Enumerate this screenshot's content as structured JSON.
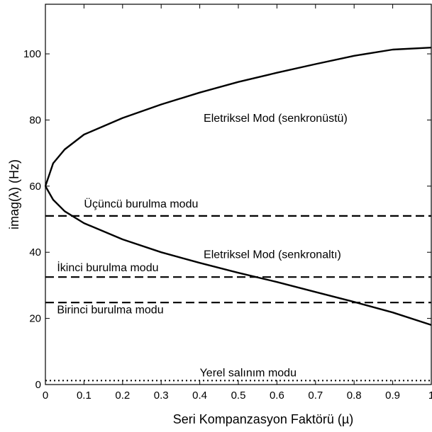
{
  "chart_data": {
    "type": "line",
    "title": "",
    "xlabel": "Seri Kompanzasyon Faktörü (µ)",
    "ylabel": "imag(λ) (Hz)",
    "xlim": [
      0,
      1
    ],
    "ylim": [
      0,
      115
    ],
    "x_ticks": [
      0,
      0.1,
      0.2,
      0.3,
      0.4,
      0.5,
      0.6,
      0.7,
      0.8,
      0.9,
      1
    ],
    "x_tick_labels": [
      "0",
      "0.1",
      "0.2",
      "0.3",
      "0.4",
      "0.5",
      "0.6",
      "0.7",
      "0.8",
      "0.9",
      "1"
    ],
    "y_ticks": [
      0,
      20,
      40,
      60,
      80,
      100
    ],
    "y_tick_labels": [
      "0",
      "20",
      "40",
      "60",
      "80",
      "100"
    ],
    "grid": false,
    "colors": {
      "line": "#000000",
      "background": "#ffffff"
    },
    "series": [
      {
        "style": "solid",
        "x": [
          0,
          0.02,
          0.05,
          0.1,
          0.2,
          0.3,
          0.4,
          0.5,
          0.6,
          0.7,
          0.8,
          0.9,
          1.0
        ],
        "y": [
          60,
          66.9,
          71.1,
          75.6,
          80.6,
          84.7,
          88.3,
          91.5,
          94.3,
          96.9,
          99.4,
          101.3,
          101.9
        ]
      },
      {
        "style": "solid",
        "x": [
          0,
          0.02,
          0.05,
          0.1,
          0.2,
          0.3,
          0.4,
          0.5,
          0.6,
          0.7,
          0.8,
          0.9,
          1.0
        ],
        "y": [
          60,
          55.9,
          52.4,
          48.8,
          43.9,
          40.0,
          36.8,
          33.8,
          31.0,
          28.0,
          25.0,
          21.8,
          18.0
        ]
      },
      {
        "style": "dashed",
        "x": [
          0,
          1
        ],
        "y": [
          51,
          51
        ]
      },
      {
        "style": "dashed",
        "x": [
          0,
          1
        ],
        "y": [
          32.5,
          32.5
        ]
      },
      {
        "style": "dashed",
        "x": [
          0,
          1
        ],
        "y": [
          24.8,
          24.8
        ]
      },
      {
        "style": "dotted",
        "x": [
          0,
          1
        ],
        "y": [
          1.2,
          1.2
        ]
      }
    ],
    "annotations": [
      {
        "text": "Eletriksel Mod (senkronüstü)",
        "x": 0.41,
        "y": 79.5
      },
      {
        "text": "Üçüncü burulma modu",
        "x": 0.1,
        "y": 53.5
      },
      {
        "text": "Eletriksel Mod (senkronaltı)",
        "x": 0.41,
        "y": 38.2
      },
      {
        "text": "İkinci burulma modu",
        "x": 0.03,
        "y": 34.3
      },
      {
        "text": "Birinci burulma modu",
        "x": 0.03,
        "y": 21.5
      },
      {
        "text": "Yerel salınım modu",
        "x": 0.4,
        "y": 2.5
      }
    ]
  }
}
